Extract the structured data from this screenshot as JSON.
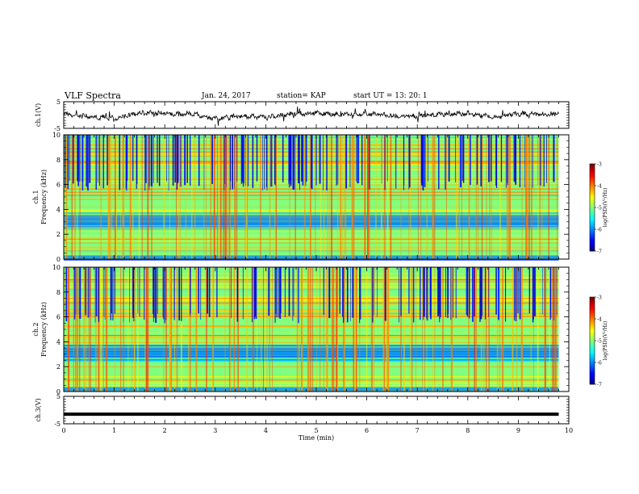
{
  "header": {
    "title": "VLF Spectra",
    "date": "Jan. 24, 2017",
    "station": "station= KAP",
    "start": "start  UT =   13: 20: 1"
  },
  "chart_data": [
    {
      "type": "line",
      "panel": "ch1-waveform",
      "ylabel": "ch.1(V)",
      "ylim": [
        -5,
        5
      ],
      "yticks": [
        "5",
        "-5"
      ],
      "xlim": [
        0,
        10
      ],
      "x_extent_min": 9.8,
      "series_description_values": {
        "x_min": [
          0,
          0.5,
          1,
          1.5,
          2,
          2.5,
          3,
          3.5,
          4,
          4.5,
          5,
          5.5,
          6,
          6.5,
          7,
          7.5,
          8,
          8.5,
          9,
          9.5,
          9.8
        ],
        "y_v": [
          0.3,
          -0.5,
          -1.2,
          0.8,
          0.5,
          0.6,
          -1.5,
          -0.2,
          -1.0,
          0.4,
          0.8,
          0.2,
          0.5,
          -0.3,
          -0.4,
          0.4,
          0.6,
          -0.8,
          0.5,
          0.3,
          0.6
        ]
      }
    },
    {
      "type": "heatmap",
      "panel": "ch1-spectrogram",
      "ylabel_line1": "ch.1",
      "ylabel_line2": "Frequency (kHz)",
      "ylim": [
        0,
        10
      ],
      "yticks": [
        "0",
        "2",
        "4",
        "6",
        "8",
        "10"
      ],
      "xlim": [
        0,
        10
      ],
      "colorbar": {
        "label": "log(PSD)(V²/Hz)",
        "range": [
          -7,
          -3
        ],
        "ticks": [
          "-3",
          "-4",
          "-5",
          "-6",
          "-7"
        ]
      }
    },
    {
      "type": "heatmap",
      "panel": "ch2-spectrogram",
      "ylabel_line1": "ch.2",
      "ylabel_line2": "Frequency (kHz)",
      "ylim": [
        0,
        10
      ],
      "yticks": [
        "0",
        "2",
        "4",
        "6",
        "8",
        "10"
      ],
      "xlim": [
        0,
        10
      ],
      "colorbar": {
        "label": "log(PSD)(V²/Hz)",
        "range": [
          -7,
          -3
        ],
        "ticks": [
          "-3",
          "-4",
          "-5",
          "-6",
          "-7"
        ]
      }
    },
    {
      "type": "line",
      "panel": "ch3-waveform",
      "ylabel": "ch.3(V)",
      "ylim": [
        -5,
        5
      ],
      "yticks": [
        "5",
        "-5"
      ],
      "xlim": [
        0,
        10
      ],
      "constant_value": -1.5,
      "x_extent_min": 9.8
    }
  ],
  "xaxis": {
    "label": "Time (min)",
    "ticks": [
      "0",
      "1",
      "2",
      "3",
      "4",
      "5",
      "6",
      "7",
      "8",
      "9",
      "10"
    ]
  },
  "colors": {
    "line": "#000000",
    "frame": "#000000"
  }
}
